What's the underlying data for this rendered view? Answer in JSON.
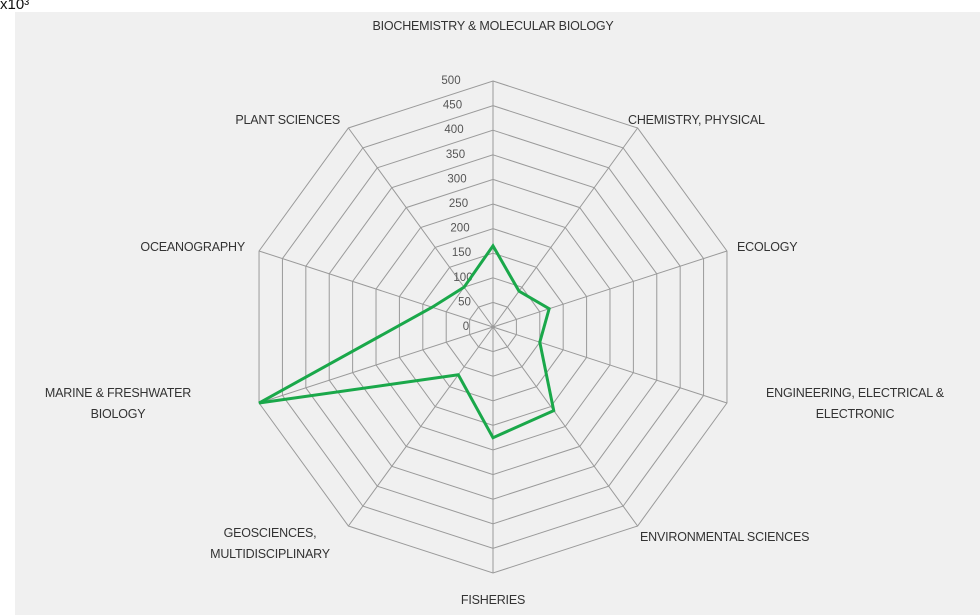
{
  "chart_data": {
    "type": "radar",
    "annotation": "x10³",
    "categories": [
      "BIOCHEMISTRY & MOLECULAR BIOLOGY",
      "CHEMISTRY, PHYSICAL",
      "ECOLOGY",
      "ENGINEERING, ELECTRICAL & ELECTRONIC",
      "ENVIRONMENTAL SCIENCES",
      "FISHERIES",
      "GEOSCIENCES, MULTIDISCIPLINARY",
      "MARINE & FRESHWATER BIOLOGY",
      "OCEANOGRAPHY",
      "PLANT SCIENCES"
    ],
    "values": [
      165,
      90,
      120,
      100,
      210,
      225,
      120,
      500,
      130,
      100
    ],
    "color": "#1aa84a",
    "ylim": [
      0,
      500
    ],
    "yticks": [
      0,
      50,
      100,
      150,
      200,
      250,
      300,
      350,
      400,
      450,
      500
    ],
    "grid": true
  }
}
